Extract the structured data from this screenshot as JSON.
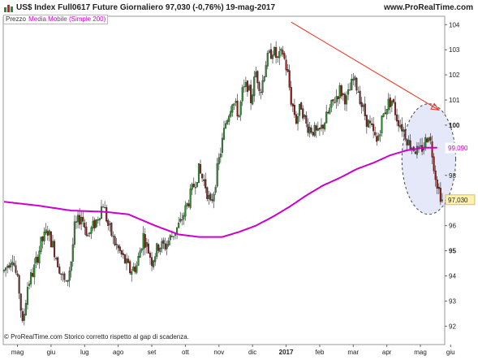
{
  "header": {
    "ticker_line": "US$ Index Full0617 Future   Giornaliero   97,030 (-0,76%)   19-mag-2017",
    "site": "www.ProRealTime.com"
  },
  "legend": {
    "price_label": "Prezzo",
    "ma_label": "Media Mobile (Simple 200)"
  },
  "footer_note": "© ProRealTime.com  Storico corretto rispetto al gap di scadenza.",
  "colors": {
    "up": "#2e8b2e",
    "down": "#8b1a1a",
    "ma": "#cc00cc",
    "trend": "#e8341c",
    "ellipse_fill": "#e4e8f8"
  },
  "chart_data": {
    "type": "candlestick",
    "ylim": [
      91.3,
      104.3
    ],
    "y_ticks": [
      {
        "value": 104,
        "label": "104",
        "bold": false
      },
      {
        "value": 103,
        "label": "103",
        "bold": false
      },
      {
        "value": 102,
        "label": "102",
        "bold": false
      },
      {
        "value": 101,
        "label": "101",
        "bold": false
      },
      {
        "value": 100,
        "label": "100",
        "bold": true
      },
      {
        "value": 98,
        "label": "98",
        "bold": false
      },
      {
        "value": 97,
        "label": "97",
        "bold": false
      },
      {
        "value": 96,
        "label": "96",
        "bold": false
      },
      {
        "value": 95,
        "label": "95",
        "bold": true
      },
      {
        "value": 94,
        "label": "94",
        "bold": false
      },
      {
        "value": 93,
        "label": "93",
        "bold": false
      },
      {
        "value": 92,
        "label": "92",
        "bold": false
      }
    ],
    "x_range": [
      0,
      13.1
    ],
    "x_ticks": [
      {
        "pos": 0.4,
        "label": "mag",
        "bold": false
      },
      {
        "pos": 1.4,
        "label": "giu",
        "bold": false
      },
      {
        "pos": 2.4,
        "label": "lug",
        "bold": false
      },
      {
        "pos": 3.4,
        "label": "ago",
        "bold": false
      },
      {
        "pos": 4.4,
        "label": "set",
        "bold": false
      },
      {
        "pos": 5.4,
        "label": "ott",
        "bold": false
      },
      {
        "pos": 6.4,
        "label": "nov",
        "bold": false
      },
      {
        "pos": 7.4,
        "label": "dic",
        "bold": false
      },
      {
        "pos": 8.4,
        "label": "2017",
        "bold": true
      },
      {
        "pos": 9.4,
        "label": "feb",
        "bold": false
      },
      {
        "pos": 10.4,
        "label": "mar",
        "bold": false
      },
      {
        "pos": 11.4,
        "label": "apr",
        "bold": false
      },
      {
        "pos": 12.4,
        "label": "mag",
        "bold": false
      },
      {
        "pos": 13.3,
        "label": "giu",
        "bold": false
      }
    ],
    "price_anchors": [
      [
        0.0,
        94.2
      ],
      [
        0.25,
        94.8
      ],
      [
        0.45,
        93.4
      ],
      [
        0.55,
        92.0
      ],
      [
        0.7,
        93.6
      ],
      [
        0.9,
        94.3
      ],
      [
        1.1,
        95.3
      ],
      [
        1.3,
        95.8
      ],
      [
        1.5,
        95.0
      ],
      [
        1.7,
        94.1
      ],
      [
        1.85,
        93.6
      ],
      [
        2.0,
        94.6
      ],
      [
        2.1,
        95.9
      ],
      [
        2.3,
        96.4
      ],
      [
        2.5,
        95.6
      ],
      [
        2.75,
        96.2
      ],
      [
        2.95,
        96.9
      ],
      [
        3.1,
        96.0
      ],
      [
        3.3,
        95.3
      ],
      [
        3.55,
        94.7
      ],
      [
        3.75,
        94.2
      ],
      [
        3.95,
        94.4
      ],
      [
        4.15,
        95.6
      ],
      [
        4.4,
        94.6
      ],
      [
        4.6,
        95.2
      ],
      [
        4.8,
        95.2
      ],
      [
        5.0,
        95.6
      ],
      [
        5.25,
        96.1
      ],
      [
        5.5,
        97.0
      ],
      [
        5.8,
        98.2
      ],
      [
        6.0,
        97.6
      ],
      [
        6.15,
        96.8
      ],
      [
        6.25,
        97.4
      ],
      [
        6.4,
        98.6
      ],
      [
        6.6,
        100.1
      ],
      [
        6.8,
        101.0
      ],
      [
        7.0,
        100.4
      ],
      [
        7.1,
        101.3
      ],
      [
        7.25,
        101.6
      ],
      [
        7.35,
        101.0
      ],
      [
        7.5,
        102.1
      ],
      [
        7.65,
        101.4
      ],
      [
        7.8,
        102.5
      ],
      [
        8.0,
        103.0
      ],
      [
        8.15,
        102.6
      ],
      [
        8.3,
        102.9
      ],
      [
        8.45,
        102.0
      ],
      [
        8.55,
        101.0
      ],
      [
        8.7,
        100.2
      ],
      [
        8.85,
        100.8
      ],
      [
        9.0,
        100.0
      ],
      [
        9.2,
        99.8
      ],
      [
        9.35,
        99.6
      ],
      [
        9.6,
        100.3
      ],
      [
        9.8,
        100.9
      ],
      [
        10.0,
        101.4
      ],
      [
        10.2,
        101.0
      ],
      [
        10.4,
        101.8
      ],
      [
        10.55,
        101.4
      ],
      [
        10.65,
        100.8
      ],
      [
        10.8,
        100.2
      ],
      [
        10.95,
        99.8
      ],
      [
        11.1,
        99.3
      ],
      [
        11.25,
        100.2
      ],
      [
        11.4,
        100.8
      ],
      [
        11.55,
        101.0
      ],
      [
        11.7,
        100.3
      ],
      [
        11.9,
        99.8
      ],
      [
        12.05,
        99.3
      ],
      [
        12.2,
        99.1
      ],
      [
        12.35,
        98.9
      ],
      [
        12.5,
        99.2
      ],
      [
        12.65,
        99.7
      ],
      [
        12.75,
        98.9
      ],
      [
        12.85,
        98.0
      ],
      [
        12.95,
        97.4
      ],
      [
        13.05,
        97.03
      ]
    ],
    "ma200_anchors": [
      [
        0.0,
        96.95
      ],
      [
        1.0,
        96.8
      ],
      [
        2.0,
        96.6
      ],
      [
        3.0,
        96.55
      ],
      [
        3.7,
        96.45
      ],
      [
        4.5,
        96.0
      ],
      [
        5.2,
        95.65
      ],
      [
        5.8,
        95.55
      ],
      [
        6.5,
        95.55
      ],
      [
        7.0,
        95.75
      ],
      [
        7.5,
        96.0
      ],
      [
        8.0,
        96.35
      ],
      [
        8.5,
        96.75
      ],
      [
        9.0,
        97.2
      ],
      [
        9.5,
        97.6
      ],
      [
        10.0,
        97.9
      ],
      [
        10.5,
        98.25
      ],
      [
        11.0,
        98.5
      ],
      [
        11.5,
        98.8
      ],
      [
        12.0,
        99.0
      ],
      [
        12.5,
        99.1
      ],
      [
        12.9,
        99.1
      ]
    ],
    "trendline": [
      [
        8.55,
        104.1
      ],
      [
        12.95,
        100.6
      ]
    ],
    "highlight_ellipse": {
      "center": [
        12.65,
        98.65
      ],
      "rx": 0.8,
      "ry_price": 2.2
    },
    "current_price": {
      "value": 97.03,
      "label": "97,030"
    },
    "ma_value": {
      "value": 99.09,
      "label": "99,090"
    }
  }
}
